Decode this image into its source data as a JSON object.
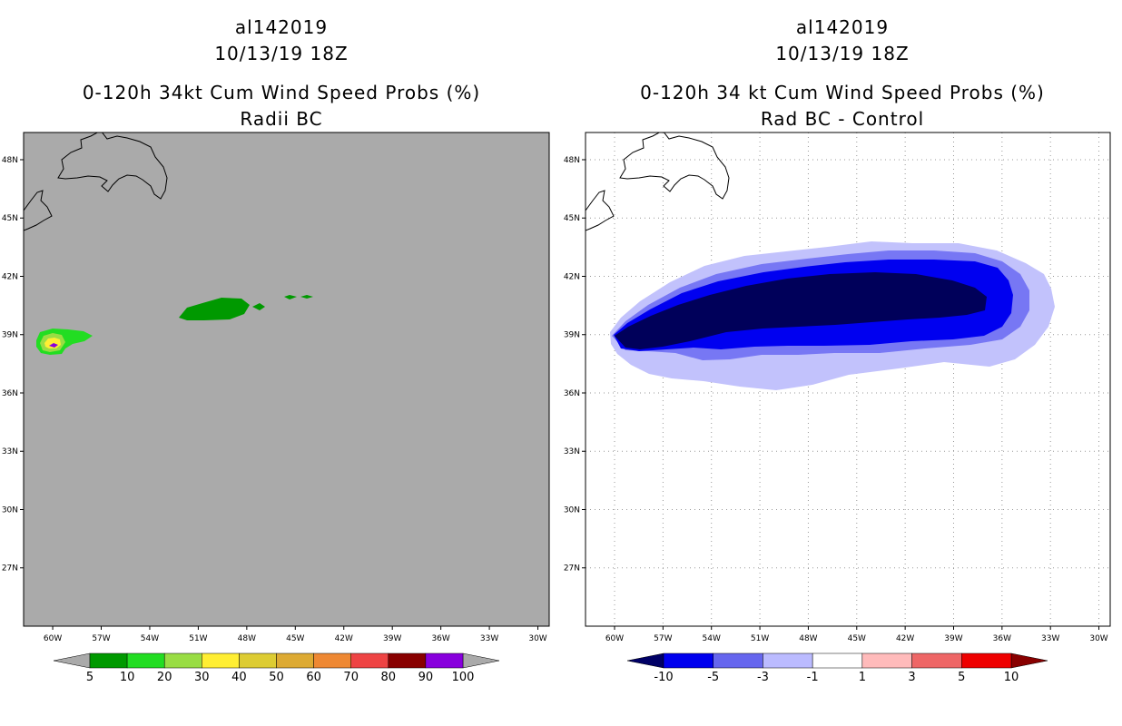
{
  "chart_data": [
    {
      "type": "contour-map",
      "title_lines": [
        "al142019",
        "10/13/19 18Z",
        "0-120h 34kt Cum Wind Speed Probs (%)",
        "Radii BC"
      ],
      "lon_ticks": [
        "60W",
        "57W",
        "54W",
        "51W",
        "48W",
        "45W",
        "42W",
        "39W",
        "36W",
        "33W",
        "30W"
      ],
      "lat_ticks": [
        "48N",
        "45N",
        "42N",
        "39N",
        "36N",
        "33N",
        "30N",
        "27N"
      ],
      "lon_range": [
        -61.8,
        -29.3
      ],
      "lat_range": [
        24.0,
        49.4
      ],
      "background_color": "#aaaaaa",
      "colorbar": {
        "labels": [
          "5",
          "10",
          "20",
          "30",
          "40",
          "50",
          "60",
          "70",
          "80",
          "90",
          "100"
        ],
        "colors": [
          "#009900",
          "#22dd22",
          "#99dd44",
          "#ffee33",
          "#ddcc33",
          "#ddaa33",
          "#ee8833",
          "#ee4444",
          "#880000",
          "#8800dd"
        ],
        "end_colors": [
          "#aaaaaa",
          "#aaaaaa"
        ]
      },
      "regions": [
        {
          "level": "5-10",
          "color": "#009900",
          "center": [
            -50.8,
            40.8
          ]
        },
        {
          "level": "5-10",
          "color": "#009900",
          "center": [
            -48.4,
            40.7
          ]
        },
        {
          "level": "5-10",
          "color": "#009900",
          "center": [
            -45.5,
            41.5
          ]
        },
        {
          "level": "5-10",
          "color": "#009900",
          "center": [
            -43.8,
            41.5
          ]
        },
        {
          "level": "10-20",
          "color": "#22dd22",
          "center": [
            -59.2,
            39.1
          ]
        },
        {
          "level": "20-30",
          "color": "#99dd44",
          "center": [
            -60.0,
            39.0
          ]
        },
        {
          "level": "30-40",
          "color": "#ffee33",
          "center": [
            -60.1,
            38.9
          ]
        },
        {
          "level": "90-100",
          "color": "#8800dd",
          "center": [
            -60.2,
            38.9
          ]
        }
      ]
    },
    {
      "type": "contour-map",
      "title_lines": [
        "al142019",
        "10/13/19 18Z",
        "0-120h 34 kt Cum Wind Speed Probs (%)",
        "Rad BC - Control"
      ],
      "lon_ticks": [
        "60W",
        "57W",
        "54W",
        "51W",
        "48W",
        "45W",
        "42W",
        "39W",
        "36W",
        "33W",
        "30W"
      ],
      "lat_ticks": [
        "48N",
        "45N",
        "42N",
        "39N",
        "36N",
        "33N",
        "30N",
        "27N"
      ],
      "lon_range": [
        -61.8,
        -29.3
      ],
      "lat_range": [
        24.0,
        49.4
      ],
      "background_color": "#ffffff",
      "grid": true,
      "colorbar": {
        "labels": [
          "-10",
          "-5",
          "-3",
          "-1",
          "1",
          "3",
          "5",
          "10"
        ],
        "colors": [
          "#0000ee",
          "#6666ee",
          "#bbbbff",
          "#ffffff",
          "#ffbbbb",
          "#ee6666",
          "#ee0000"
        ],
        "end_colors": [
          "#000066",
          "#880000"
        ]
      },
      "regions": [
        {
          "level": "-1 to -3",
          "color": "#c2c2fc",
          "extent_lon": [
            -60.0,
            -32.5
          ],
          "extent_lat": [
            36.7,
            44.4
          ]
        },
        {
          "level": "-3 to -5",
          "color": "#7777f4",
          "extent_lon": [
            -60.0,
            -34.5
          ],
          "extent_lat": [
            37.7,
            43.9
          ]
        },
        {
          "level": "-5 to -10",
          "color": "#0000f0",
          "extent_lon": [
            -60.0,
            -35.0
          ],
          "extent_lat": [
            38.4,
            43.4
          ]
        },
        {
          "level": "< -10",
          "color": "#00005a",
          "extent_lon": [
            -59.8,
            -36.0
          ],
          "extent_lat": [
            38.9,
            42.8
          ]
        }
      ]
    }
  ]
}
